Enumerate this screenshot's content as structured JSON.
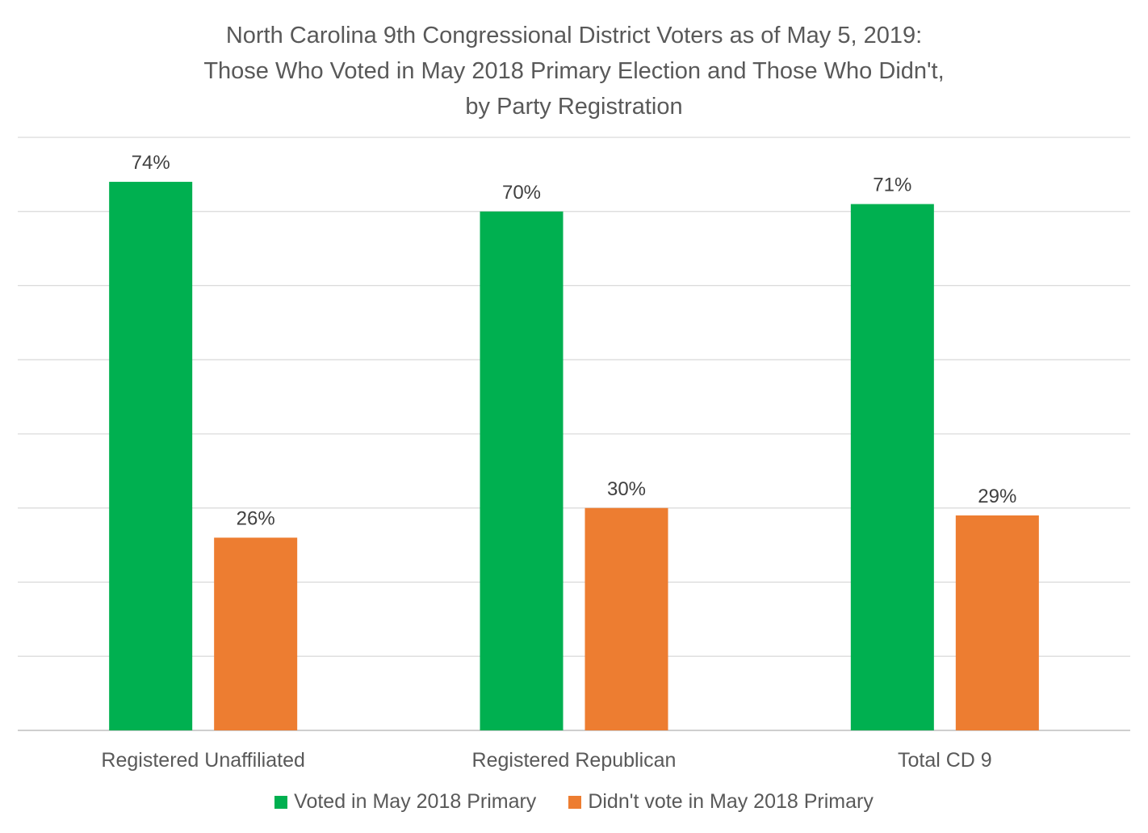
{
  "chart_data": {
    "type": "bar",
    "title_lines": [
      "North Carolina 9th Congressional District Voters as of May 5, 2019:",
      "Those Who Voted in May 2018 Primary Election and Those Who Didn't,",
      "by Party Registration"
    ],
    "categories": [
      "Registered Unaffiliated",
      "Registered Republican",
      "Total CD 9"
    ],
    "series": [
      {
        "name": "Voted in May 2018 Primary",
        "values": [
          74,
          70,
          71
        ],
        "labels": [
          "74%",
          "70%",
          "71%"
        ],
        "color": "#00b050"
      },
      {
        "name": "Didn't vote in May 2018 Primary",
        "values": [
          26,
          30,
          29
        ],
        "labels": [
          "26%",
          "30%",
          "29%"
        ],
        "color": "#ed7d31"
      }
    ],
    "ylim": [
      0,
      80
    ],
    "grid": true,
    "legend_position": "bottom"
  }
}
